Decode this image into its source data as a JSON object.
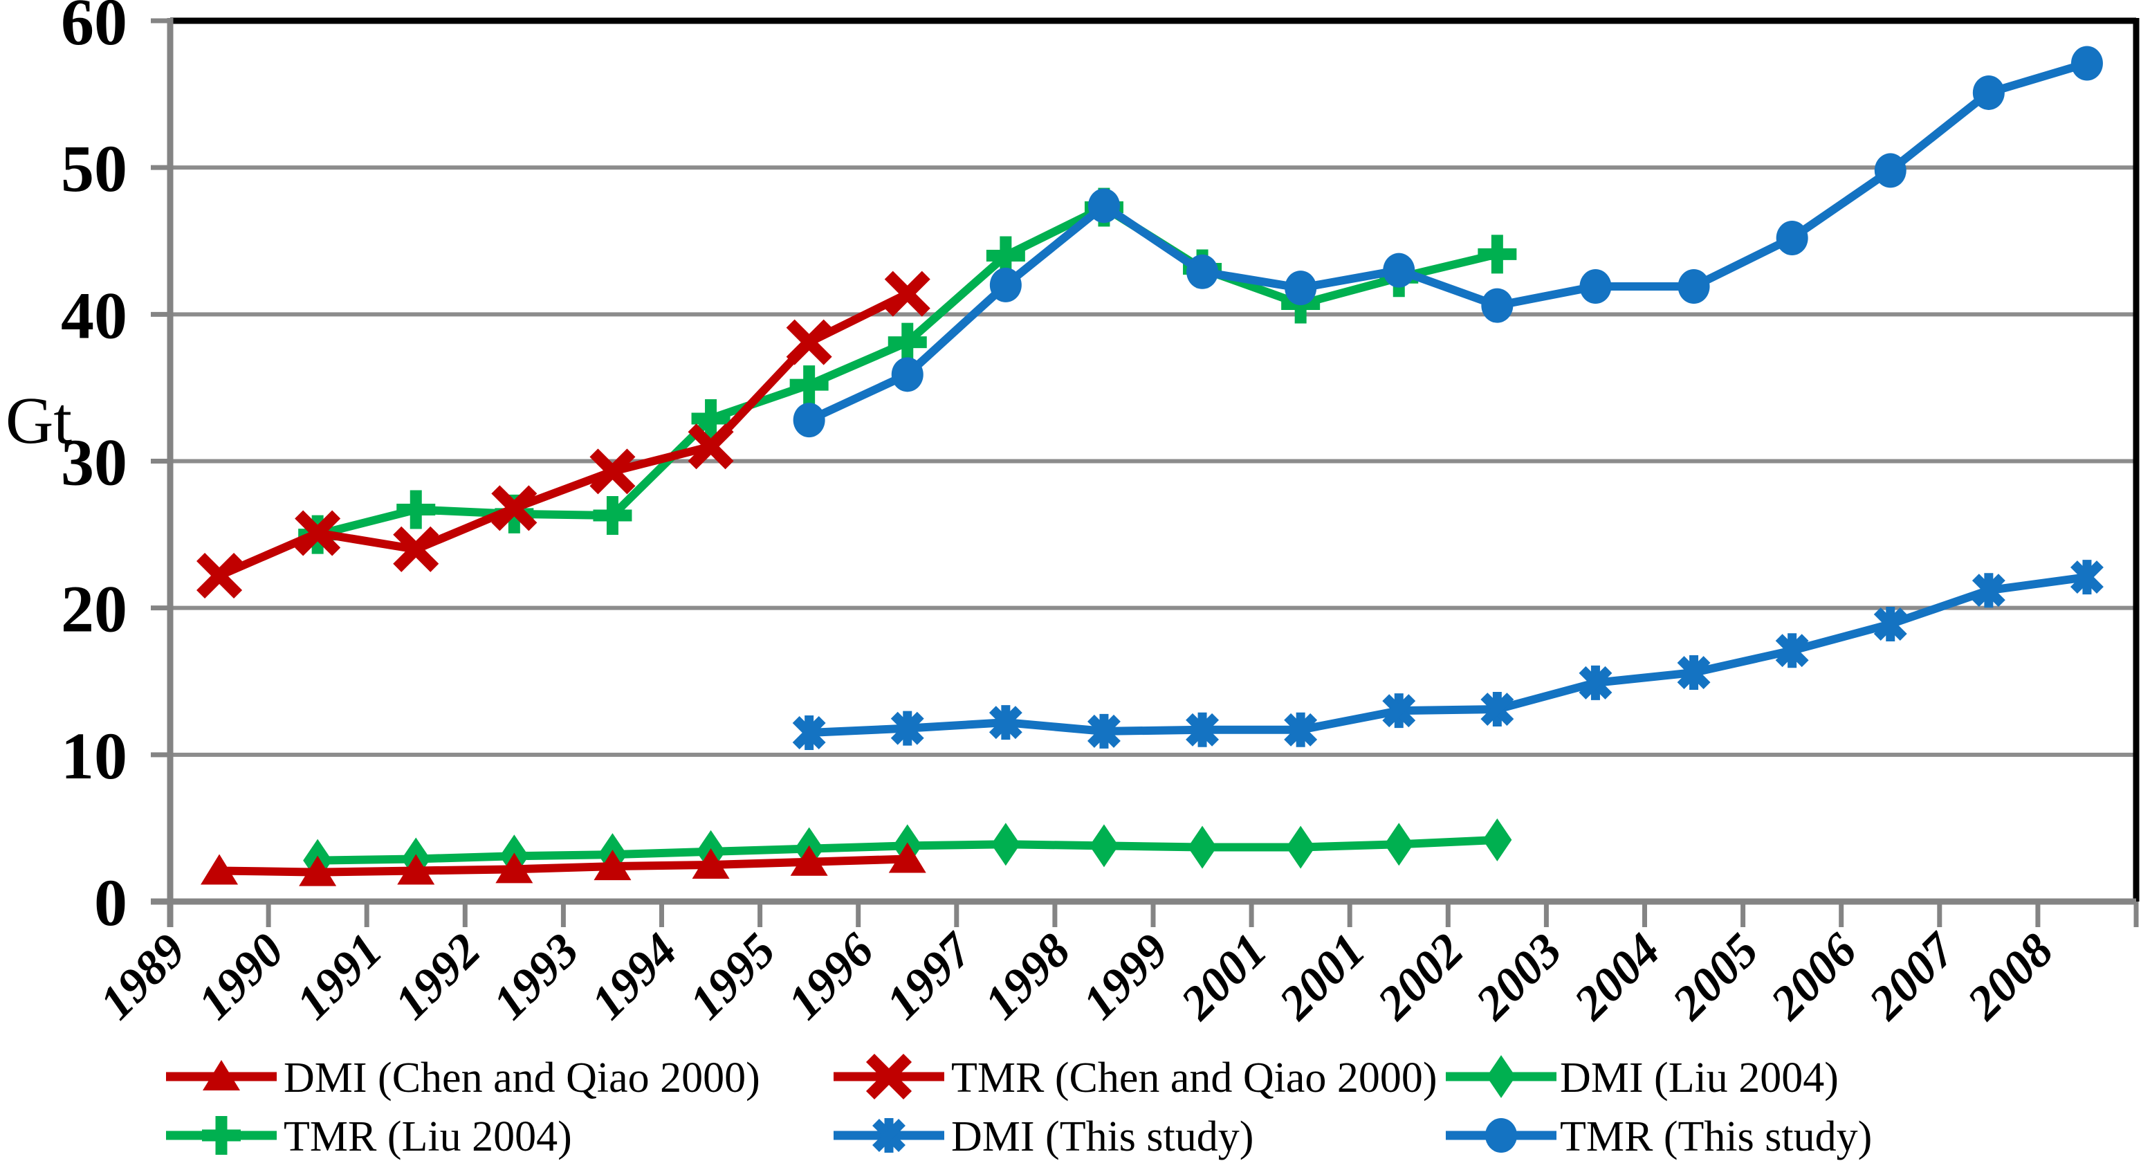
{
  "chart_data": {
    "type": "line",
    "title": "",
    "xlabel": "",
    "ylabel": "Gt",
    "ylim": [
      0,
      60
    ],
    "yticks": [
      0,
      10,
      20,
      30,
      40,
      50,
      60
    ],
    "grid": true,
    "legend_position": "bottom",
    "frame_colors": {
      "top_right": "#000000",
      "axis_gray": "#848484",
      "gridline_gray": "#8C8C8C"
    },
    "categories": [
      "1989",
      "1990",
      "1991",
      "1992",
      "1993",
      "1994",
      "1995",
      "1996",
      "1997",
      "1998",
      "1999",
      "2001",
      "2001",
      "2002",
      "2003",
      "2004",
      "2005",
      "2006",
      "2007",
      "2008"
    ],
    "series": [
      {
        "key": "dmi-chen-and-qiao-2000",
        "name": "DMI (Chen and Qiao 2000)",
        "color": "#C00000",
        "marker": "triangle",
        "start_index": 0,
        "values": [
          2.1,
          2.0,
          2.1,
          2.2,
          2.4,
          2.5,
          2.7,
          2.9
        ]
      },
      {
        "key": "tmr-chen-and-qiao-2000",
        "name": "TMR (Chen and Qiao 2000)",
        "color": "#C00000",
        "marker": "x",
        "start_index": 0,
        "values": [
          22.2,
          25.1,
          24.0,
          26.8,
          29.3,
          31.0,
          38.1,
          41.4
        ]
      },
      {
        "key": "dmi-liu-2004",
        "name": "DMI (Liu 2004)",
        "color": "#00B050",
        "marker": "diamond",
        "start_index": 1,
        "values": [
          2.8,
          2.9,
          3.1,
          3.2,
          3.4,
          3.6,
          3.8,
          3.9,
          3.8,
          3.7,
          3.7,
          3.9,
          4.2
        ]
      },
      {
        "key": "tmr-liu-2004",
        "name": "TMR  (Liu 2004)",
        "color": "#00B050",
        "marker": "plus",
        "start_index": 1,
        "values": [
          25.0,
          26.7,
          26.4,
          26.3,
          32.9,
          35.2,
          38.1,
          44.0,
          47.3,
          43.1,
          40.7,
          42.5,
          44.1
        ]
      },
      {
        "key": "dmi-this-study",
        "name": "DMI (This study)",
        "color": "#1473C2",
        "marker": "asterisk",
        "start_index": 6,
        "values": [
          11.5,
          11.8,
          12.2,
          11.6,
          11.7,
          11.7,
          13.0,
          13.1,
          14.9,
          15.6,
          17.1,
          18.9,
          21.2,
          22.1
        ]
      },
      {
        "key": "tmr-this-study",
        "name": "TMR (This study)",
        "color": "#1473C2",
        "marker": "circle",
        "start_index": 6,
        "values": [
          32.8,
          35.9,
          42.0,
          47.4,
          42.9,
          41.8,
          43.0,
          40.6,
          41.9,
          41.9,
          45.2,
          49.8,
          55.1,
          57.1
        ]
      }
    ]
  }
}
